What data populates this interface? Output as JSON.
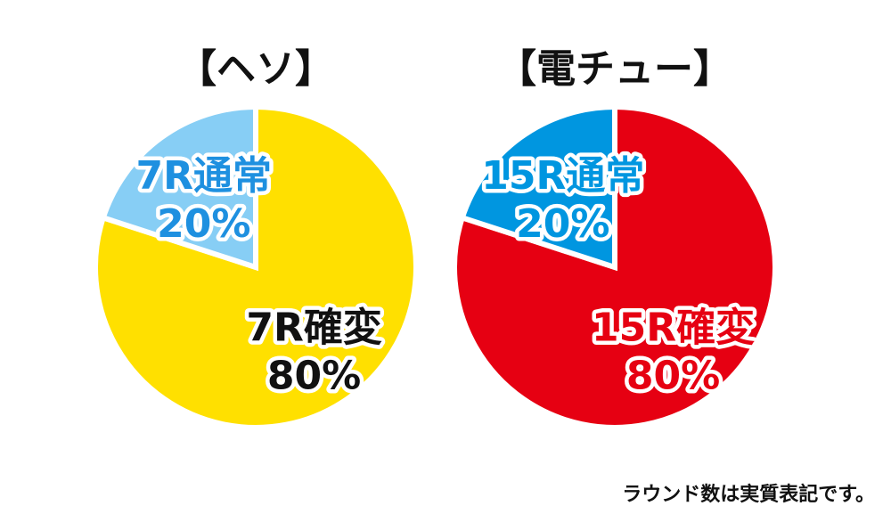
{
  "chart_data": [
    {
      "type": "pie",
      "title": "【ヘソ】",
      "slices": [
        {
          "label": "7R確変",
          "value": 80,
          "value_label": "80%",
          "color": "#FFE000",
          "label_color": "#111111"
        },
        {
          "label": "7R通常",
          "value": 20,
          "value_label": "20%",
          "color": "#87CEF5",
          "label_color": "#1E90E0"
        }
      ]
    },
    {
      "type": "pie",
      "title": "【電チュー】",
      "slices": [
        {
          "label": "15R確変",
          "value": 80,
          "value_label": "80%",
          "color": "#E60012",
          "label_color": "#E60012"
        },
        {
          "label": "15R通常",
          "value": 20,
          "value_label": "20%",
          "color": "#0096E0",
          "label_color": "#0096E0"
        }
      ]
    }
  ],
  "footnote": "ラウンド数は実質表記です。"
}
